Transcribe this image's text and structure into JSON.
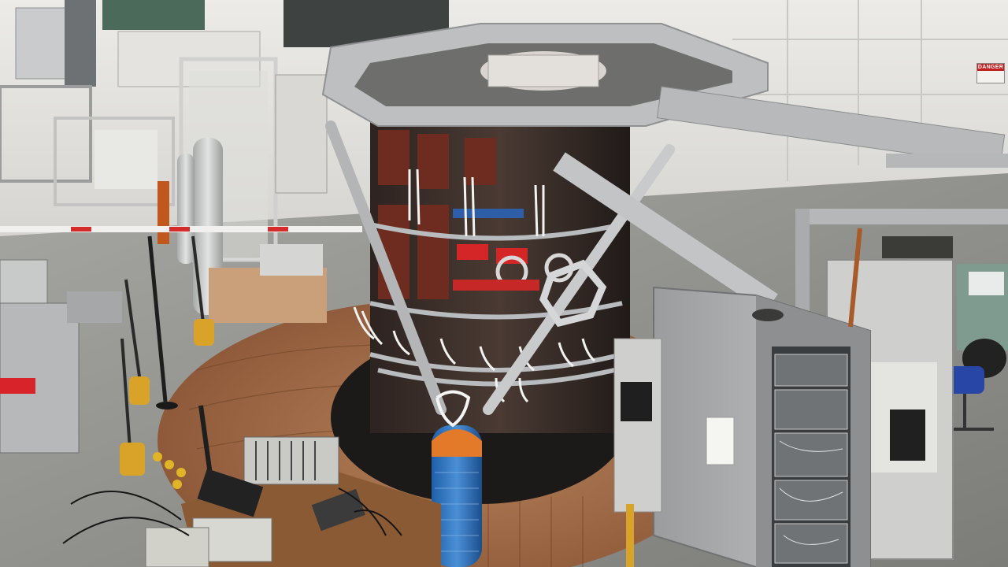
{
  "photo": {
    "warning_sign": {
      "text": "DANGER",
      "color": "#c41e1e"
    }
  }
}
